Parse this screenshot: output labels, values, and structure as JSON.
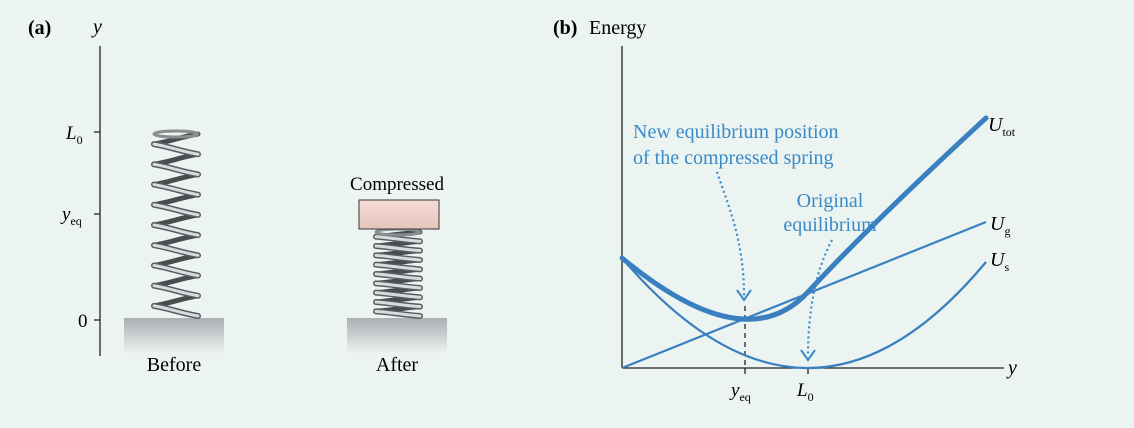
{
  "panel_a": {
    "label": "(a)",
    "axis_label": "y",
    "ticks": {
      "l0_main": "L",
      "l0_sub": "0",
      "yeq_main": "y",
      "yeq_sub": "eq",
      "zero": "0"
    },
    "before_label": "Before",
    "after_label": "After",
    "block_label": "Compressed"
  },
  "panel_b": {
    "label": "(b)",
    "y_axis_label": "Energy",
    "x_axis_label": "y",
    "x_ticks": {
      "yeq_main": "y",
      "yeq_sub": "eq",
      "l0_main": "L",
      "l0_sub": "0"
    },
    "curves": {
      "u_tot_main": "U",
      "u_tot_sub": "tot",
      "u_g_main": "U",
      "u_g_sub": "g",
      "u_s_main": "U",
      "u_s_sub": "s"
    },
    "annotations": {
      "new_eq_line1": "New equilibrium position",
      "new_eq_line2": "of the compressed spring",
      "orig_eq_line1": "Original",
      "orig_eq_line2": "equilibrium"
    },
    "colors": {
      "curve": "#3a7fc0",
      "annotation": "#3a8ac8"
    }
  }
}
